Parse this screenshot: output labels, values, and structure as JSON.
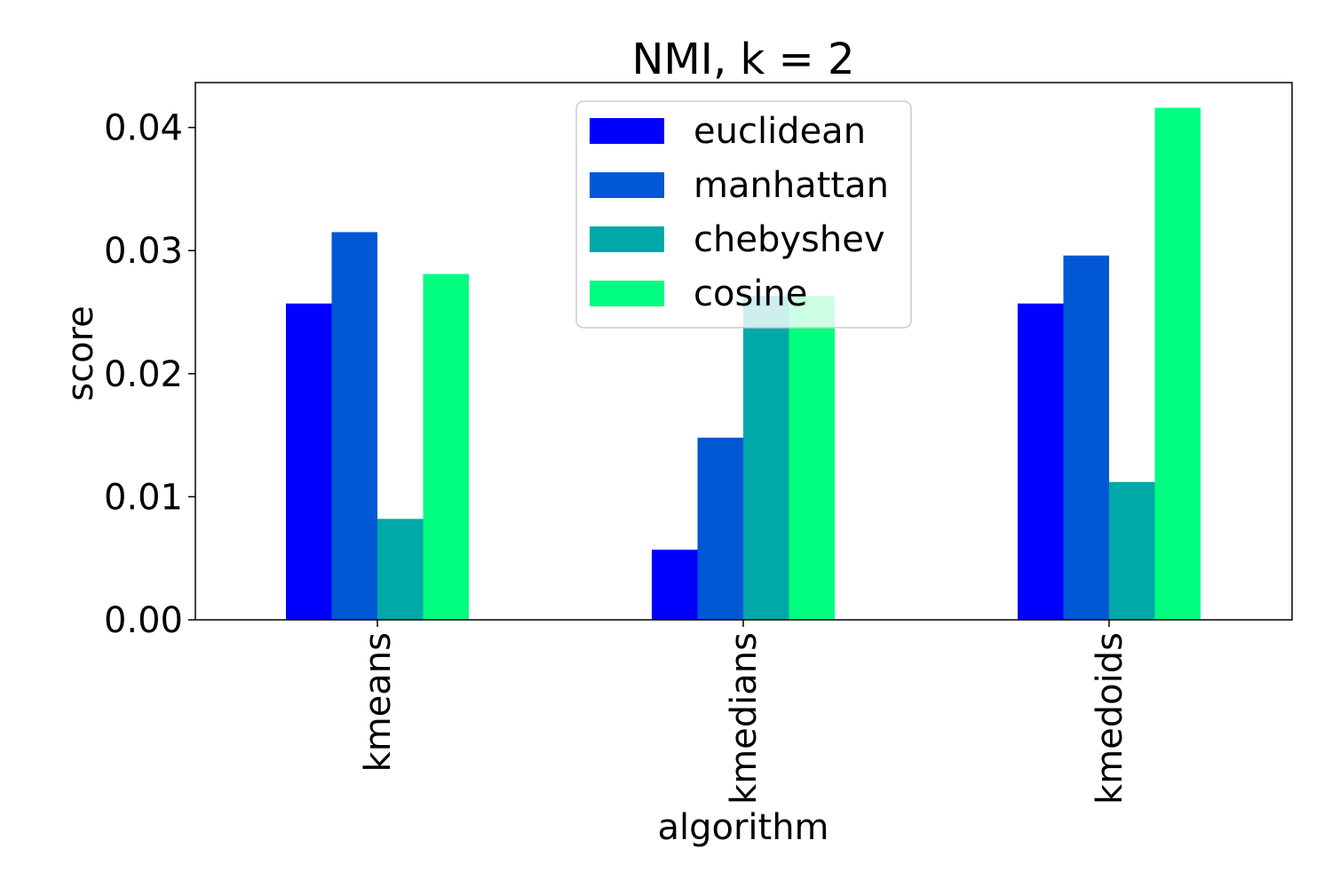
{
  "chart_data": {
    "type": "bar",
    "title": "NMI, k = 2",
    "xlabel": "algorithm",
    "ylabel": "score",
    "categories": [
      "kmeans",
      "kmedians",
      "kmedoids"
    ],
    "series": [
      {
        "name": "euclidean",
        "color": "#0000ff",
        "values": [
          0.0257,
          0.0057,
          0.0257
        ]
      },
      {
        "name": "manhattan",
        "color": "#0058d4",
        "values": [
          0.0315,
          0.0148,
          0.0296
        ]
      },
      {
        "name": "chebyshev",
        "color": "#00a8a8",
        "values": [
          0.0082,
          0.0263,
          0.0112
        ]
      },
      {
        "name": "cosine",
        "color": "#00ff80",
        "values": [
          0.0281,
          0.0263,
          0.0416
        ]
      }
    ],
    "ylim": [
      0,
      0.04365
    ],
    "yticks": [
      {
        "value": 0.0,
        "label": "0.00"
      },
      {
        "value": 0.01,
        "label": "0.01"
      },
      {
        "value": 0.02,
        "label": "0.02"
      },
      {
        "value": 0.03,
        "label": "0.03"
      },
      {
        "value": 0.04,
        "label": "0.04"
      }
    ],
    "legend": {
      "position": "upper-center"
    },
    "grid": false
  }
}
